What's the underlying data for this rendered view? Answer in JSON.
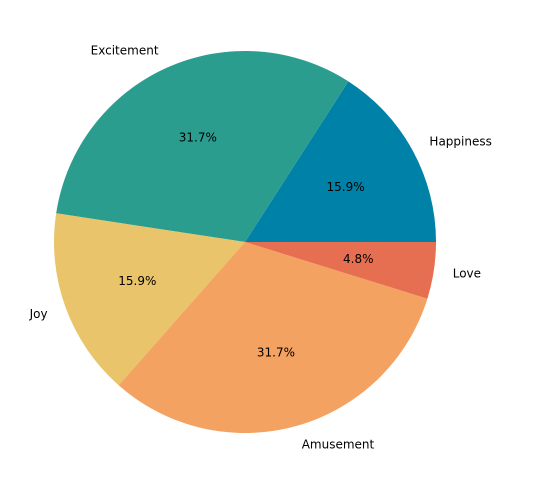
{
  "chart_data": {
    "type": "pie",
    "labels": [
      "Happiness",
      "Excitement",
      "Joy",
      "Amusement",
      "Love"
    ],
    "values": [
      15.9,
      31.7,
      15.9,
      31.7,
      4.8
    ],
    "percent_labels": [
      "15.9%",
      "31.7%",
      "15.9%",
      "31.7%",
      "4.8%"
    ],
    "colors": [
      "#0081a7",
      "#2a9d8f",
      "#e9c46a",
      "#f4a261",
      "#e76f51"
    ],
    "start_angle_deg": 0,
    "direction": "counterclockwise",
    "legend": "none"
  }
}
